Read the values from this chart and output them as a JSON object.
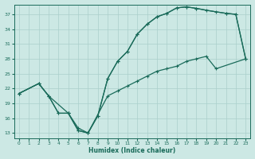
{
  "xlabel": "Humidex (Indice chaleur)",
  "bg_color": "#cce8e4",
  "grid_color": "#aacfcb",
  "line_color": "#1a6b5a",
  "xlim": [
    -0.5,
    23.5
  ],
  "ylim": [
    12,
    39
  ],
  "xticks": [
    0,
    1,
    2,
    3,
    4,
    5,
    6,
    7,
    8,
    9,
    10,
    11,
    12,
    13,
    14,
    15,
    16,
    17,
    18,
    19,
    20,
    21,
    22,
    23
  ],
  "yticks": [
    13,
    16,
    19,
    22,
    25,
    28,
    31,
    34,
    37
  ],
  "line1_x": [
    0,
    2,
    3,
    4,
    5,
    6,
    7,
    8,
    9,
    10,
    11,
    12,
    13,
    14,
    15,
    16,
    17,
    18,
    19,
    21,
    22,
    23
  ],
  "line1_y": [
    21,
    23,
    20.5,
    17,
    17,
    13.5,
    13,
    16.5,
    24,
    27.5,
    29.5,
    33,
    35,
    36.5,
    37.2,
    38.3,
    38.5,
    38.2,
    37.8,
    37.2,
    37,
    28
  ],
  "line2_x": [
    0,
    2,
    3,
    4,
    5,
    6,
    7,
    8,
    9,
    10,
    11,
    12,
    13,
    14,
    15,
    16,
    17,
    18,
    20,
    21,
    22,
    23
  ],
  "line2_y": [
    21,
    23,
    20.5,
    17,
    17,
    13.5,
    13,
    16.5,
    24,
    27.5,
    29.5,
    33,
    35,
    36.5,
    37.2,
    38.3,
    38.5,
    38.2,
    37.5,
    37.2,
    37,
    28
  ],
  "line3_x": [
    0,
    2,
    3,
    5,
    6,
    7,
    9,
    10,
    11,
    12,
    13,
    14,
    15,
    16,
    17,
    18,
    19,
    20,
    23
  ],
  "line3_y": [
    21,
    23,
    20.5,
    17,
    14,
    13,
    20.5,
    21.5,
    22.5,
    23.5,
    24.5,
    25.5,
    26,
    26.5,
    27.5,
    28,
    28.5,
    26,
    28
  ]
}
